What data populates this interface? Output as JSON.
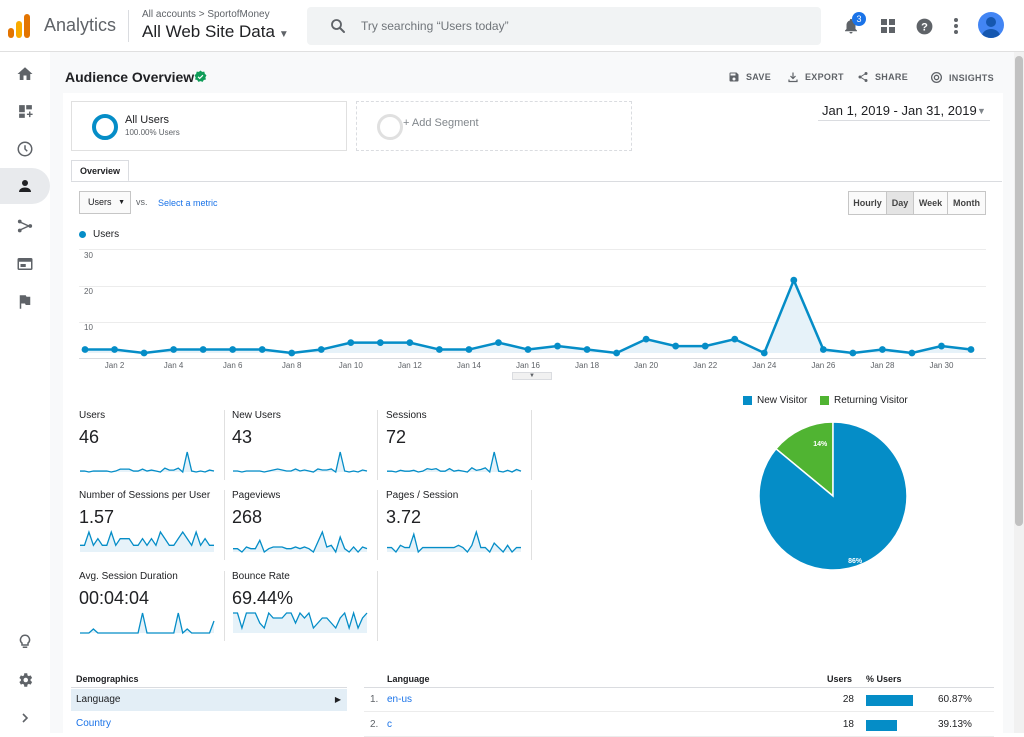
{
  "header": {
    "app_title": "Analytics",
    "breadcrumb": "All accounts > SportofMoney",
    "view_name": "All Web Site Data",
    "search_placeholder": "Try searching “Users today”",
    "notification_count": "3",
    "icons": [
      "analytics-logo",
      "search-icon",
      "bell-icon",
      "apps-grid-icon",
      "help-icon",
      "more-vert-icon",
      "account-avatar"
    ]
  },
  "sidebar": {
    "items": [
      {
        "icon": "home-icon",
        "active": false
      },
      {
        "icon": "customization-icon",
        "active": false
      },
      {
        "icon": "realtime-clock-icon",
        "active": false
      },
      {
        "icon": "audience-person-icon",
        "active": true
      },
      {
        "icon": "acquisition-icon",
        "active": false
      },
      {
        "icon": "behavior-icon",
        "active": false
      },
      {
        "icon": "conversions-flag-icon",
        "active": false
      }
    ],
    "bottom": [
      "discover-bulb-icon",
      "admin-gear-icon",
      "expand-chevron-icon"
    ]
  },
  "toolbar": {
    "page_title": "Audience Overview",
    "save": "SAVE",
    "export": "EXPORT",
    "share": "SHARE",
    "insights": "INSIGHTS"
  },
  "segments": {
    "all_users": "All Users",
    "all_users_sub": "100.00% Users",
    "add_segment": "+ Add Segment"
  },
  "date_range": "Jan 1, 2019 - Jan 31, 2019",
  "tabs": {
    "overview": "Overview"
  },
  "metric_controls": {
    "metric": "Users",
    "vs": "vs.",
    "select_metric": "Select a metric",
    "granularity": [
      "Hourly",
      "Day",
      "Week",
      "Month"
    ],
    "active_granularity": "Day"
  },
  "chart_data": [
    {
      "type": "area",
      "series": [
        {
          "name": "Users",
          "values": [
            1,
            1,
            0,
            1,
            1,
            1,
            1,
            0,
            1,
            3,
            3,
            3,
            1,
            1,
            3,
            1,
            2,
            1,
            0,
            4,
            2,
            2,
            4,
            0,
            21,
            1,
            0,
            1,
            0,
            2,
            1
          ]
        }
      ],
      "x_tick_labels": [
        "Jan 2",
        "Jan 4",
        "Jan 6",
        "Jan 8",
        "Jan 10",
        "Jan 12",
        "Jan 14",
        "Jan 16",
        "Jan 18",
        "Jan 20",
        "Jan 22",
        "Jan 24",
        "Jan 26",
        "Jan 28",
        "Jan 30"
      ],
      "y_tick_labels": [
        "30",
        "20",
        "10"
      ],
      "ylim": [
        0,
        30
      ],
      "grid": true,
      "color": "#058dc7"
    },
    {
      "type": "pie",
      "legend": [
        "New Visitor",
        "Returning Visitor"
      ],
      "values": [
        86,
        14
      ],
      "labels": [
        "86%",
        "14%"
      ],
      "colors": [
        "#058dc7",
        "#50b432"
      ],
      "legend_position": "top"
    }
  ],
  "stats": [
    {
      "label": "Users",
      "value": "46",
      "spark": [
        1,
        1,
        0,
        1,
        1,
        1,
        1,
        0,
        1,
        3,
        3,
        3,
        1,
        1,
        3,
        1,
        2,
        1,
        0,
        4,
        2,
        2,
        4,
        0,
        21,
        1,
        0,
        1,
        0,
        2,
        1
      ]
    },
    {
      "label": "New Users",
      "value": "43",
      "spark": [
        1,
        1,
        0,
        1,
        1,
        1,
        1,
        0,
        1,
        2,
        3,
        2,
        1,
        1,
        3,
        1,
        2,
        1,
        0,
        3,
        2,
        2,
        3,
        0,
        20,
        1,
        0,
        1,
        0,
        2,
        1
      ]
    },
    {
      "label": "Sessions",
      "value": "72",
      "spark": [
        1,
        1,
        0,
        2,
        1,
        1,
        2,
        0,
        1,
        4,
        3,
        4,
        1,
        1,
        4,
        1,
        2,
        1,
        0,
        5,
        2,
        3,
        5,
        0,
        24,
        1,
        0,
        2,
        0,
        3,
        1
      ]
    },
    {
      "label": "Number of Sessions per User",
      "value": "1.57",
      "spark": [
        1,
        1,
        3,
        1,
        2,
        1,
        1,
        3,
        1,
        2,
        2,
        2,
        1,
        1,
        2,
        1,
        2,
        1,
        3,
        2,
        1,
        1,
        2,
        3,
        2,
        1,
        3,
        1,
        2,
        1,
        1
      ]
    },
    {
      "label": "Pageviews",
      "value": "268",
      "spark": [
        2,
        2,
        0,
        3,
        2,
        2,
        7,
        0,
        2,
        3,
        3,
        3,
        2,
        2,
        3,
        2,
        3,
        2,
        0,
        6,
        12,
        3,
        4,
        0,
        9,
        2,
        0,
        3,
        0,
        3,
        2
      ]
    },
    {
      "label": "Pages / Session",
      "value": "3.72",
      "spark": [
        2,
        2,
        0,
        3,
        2,
        2,
        8,
        0,
        2,
        2,
        2,
        2,
        2,
        2,
        2,
        2,
        3,
        2,
        0,
        3,
        9,
        2,
        2,
        0,
        4,
        2,
        0,
        3,
        0,
        2,
        2
      ]
    },
    {
      "label": "Avg. Session Duration",
      "value": "00:04:04",
      "spark": [
        0,
        0,
        0,
        1,
        0,
        0,
        0,
        0,
        0,
        0,
        0,
        0,
        0,
        0,
        5,
        0,
        0,
        0,
        0,
        0,
        0,
        0,
        5,
        0,
        1,
        0,
        0,
        0,
        0,
        0,
        3
      ]
    },
    {
      "label": "Bounce Rate",
      "value": "69.44%",
      "spark": [
        8,
        8,
        2,
        8,
        8,
        8,
        4,
        2,
        8,
        6,
        6,
        6,
        8,
        8,
        4,
        8,
        6,
        8,
        2,
        4,
        6,
        6,
        4,
        2,
        6,
        8,
        2,
        8,
        2,
        6,
        8
      ]
    }
  ],
  "demographics": {
    "title": "Demographics",
    "items": [
      "Language",
      "Country"
    ]
  },
  "language_table": {
    "headers": {
      "name": "Language",
      "users": "Users",
      "pct": "% Users"
    },
    "rows": [
      {
        "rank": "1.",
        "name": "en-us",
        "users": "28",
        "pct": "60.87%",
        "share": 0.6087
      },
      {
        "rank": "2.",
        "name": "c",
        "users": "18",
        "pct": "39.13%",
        "share": 0.3913
      }
    ]
  }
}
